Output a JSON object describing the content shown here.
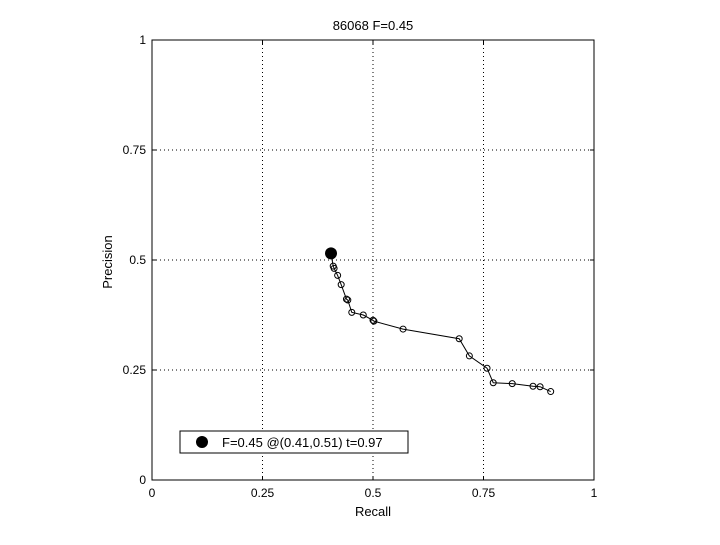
{
  "chart_data": {
    "type": "line",
    "title": "86068 F=0.45",
    "xlabel": "Recall",
    "ylabel": "Precision",
    "xlim": [
      0,
      1
    ],
    "ylim": [
      0,
      1
    ],
    "xticks": [
      0,
      0.25,
      0.5,
      0.75,
      1
    ],
    "xtick_labels": [
      "0",
      "0.25",
      "0.5",
      "0.75",
      "1"
    ],
    "yticks": [
      0,
      0.25,
      0.5,
      0.75,
      1
    ],
    "ytick_labels": [
      "0",
      "0.25",
      "0.5",
      "0.75",
      "1"
    ],
    "grid": true,
    "legend_position": "bottom-left",
    "series": [
      {
        "marker": "open-circle",
        "color": "#000000",
        "points": [
          [
            0.405,
            0.514
          ],
          [
            0.41,
            0.486
          ],
          [
            0.412,
            0.481
          ],
          [
            0.42,
            0.465
          ],
          [
            0.428,
            0.444
          ],
          [
            0.44,
            0.411
          ],
          [
            0.443,
            0.409
          ],
          [
            0.452,
            0.381
          ],
          [
            0.478,
            0.375
          ],
          [
            0.5,
            0.363
          ],
          [
            0.502,
            0.361
          ],
          [
            0.568,
            0.343
          ],
          [
            0.695,
            0.321
          ],
          [
            0.718,
            0.282
          ],
          [
            0.758,
            0.254
          ],
          [
            0.772,
            0.221
          ],
          [
            0.815,
            0.219
          ],
          [
            0.862,
            0.213
          ],
          [
            0.878,
            0.212
          ],
          [
            0.902,
            0.201
          ]
        ]
      }
    ],
    "best_point": {
      "x": 0.405,
      "y": 0.515,
      "marker": "filled-circle",
      "legend": "F=0.45 @(0.41,0.51) t=0.97"
    }
  }
}
